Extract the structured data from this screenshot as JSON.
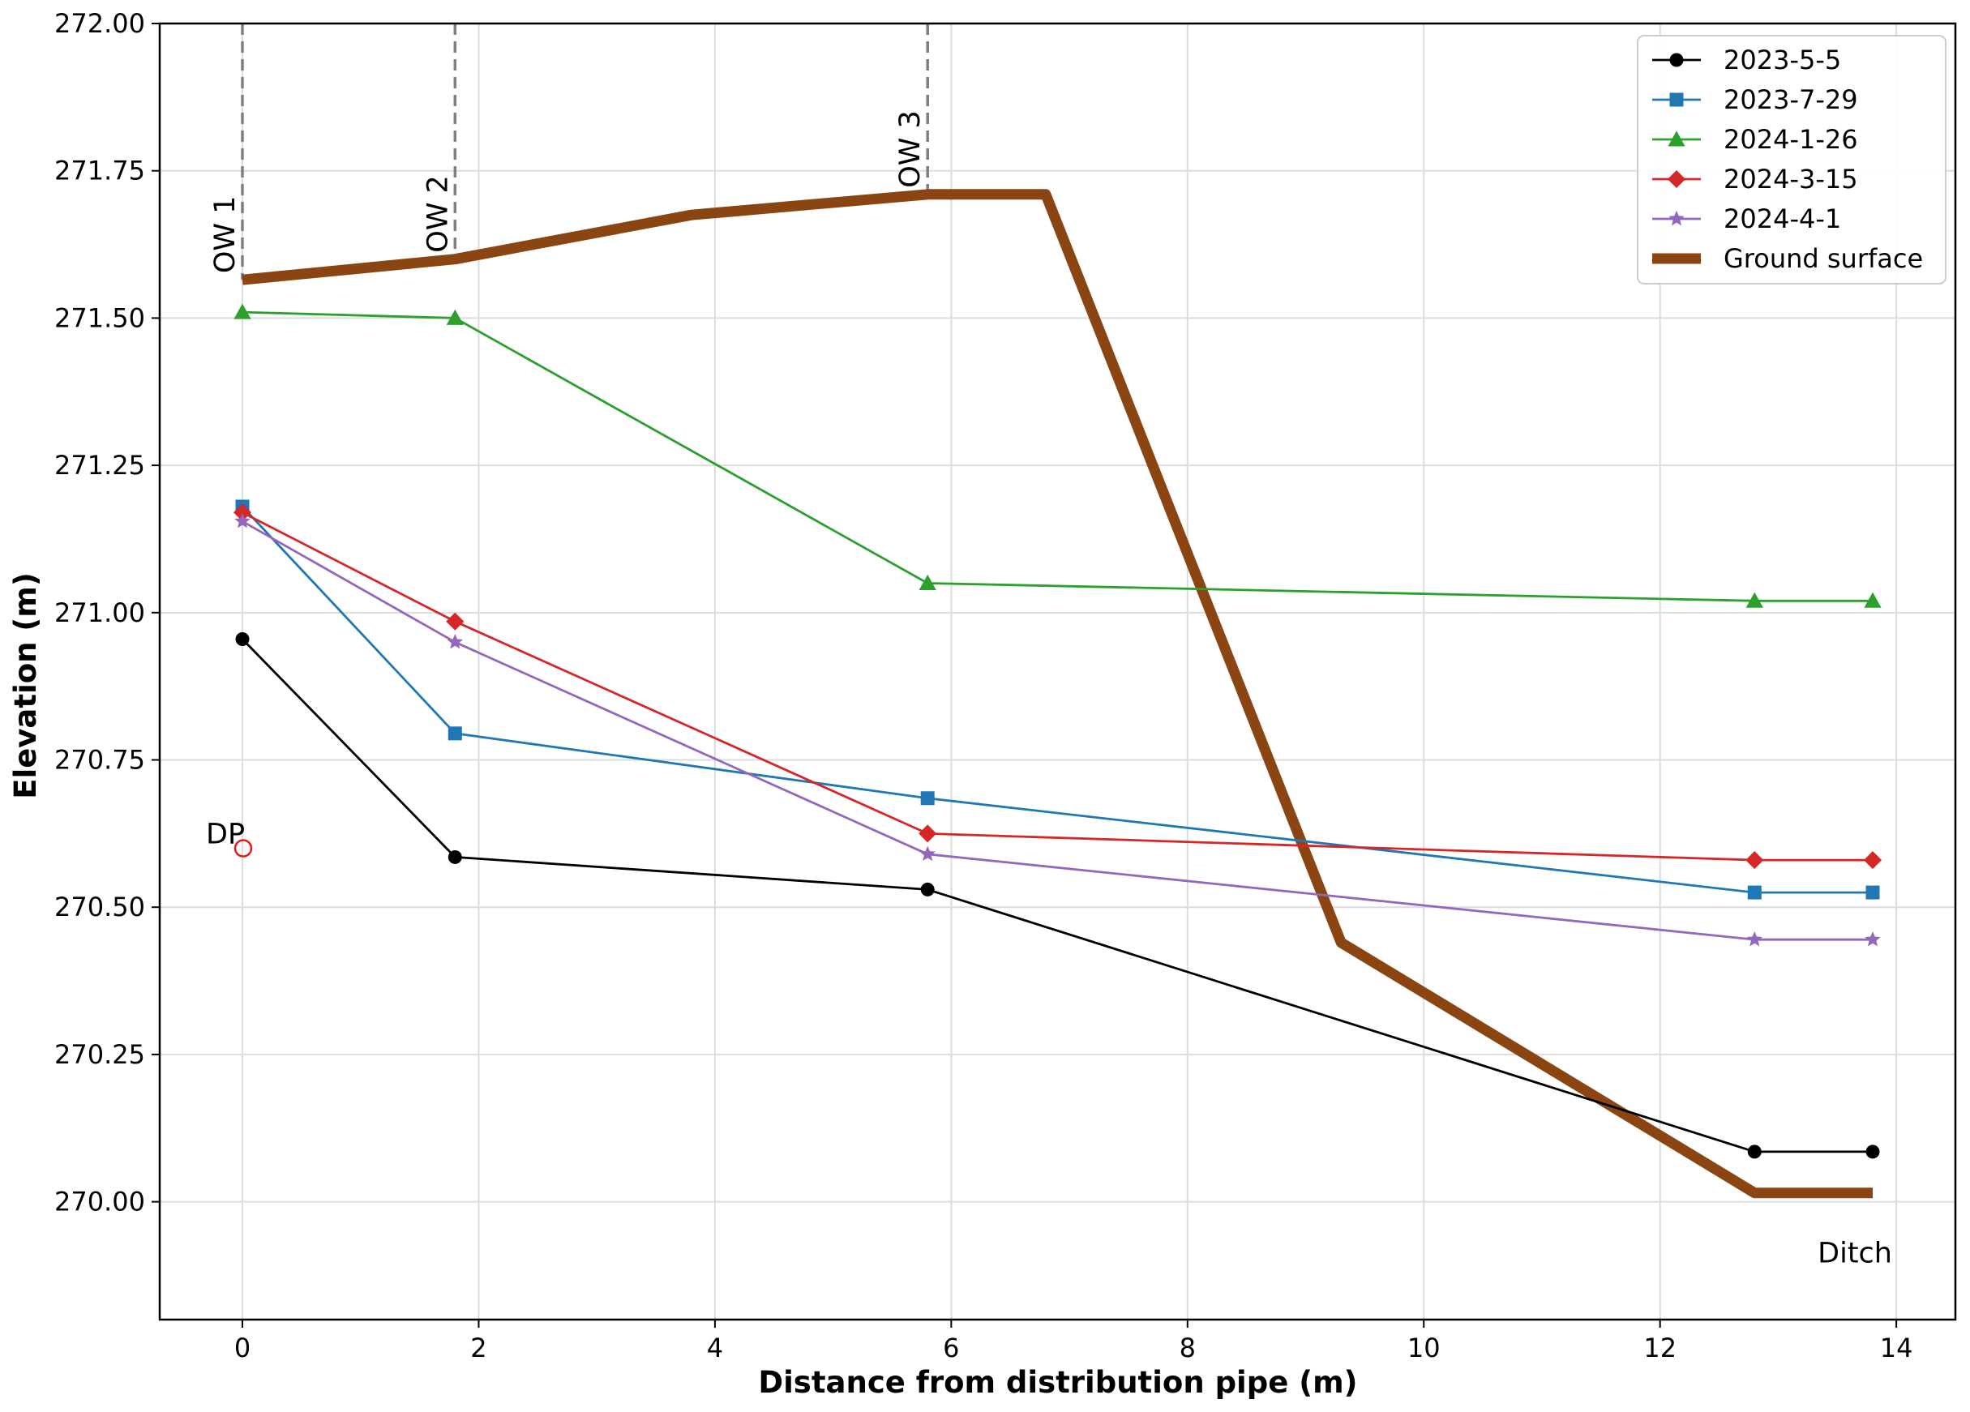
{
  "chart_data": {
    "type": "line",
    "title": "",
    "xlabel": "Distance from distribution pipe (m)",
    "ylabel": "Elevation (m)",
    "xlim": [
      -0.7,
      14.5
    ],
    "ylim": [
      269.8,
      272.0
    ],
    "xticks": [
      0,
      2,
      4,
      6,
      8,
      10,
      12,
      14
    ],
    "yticks": [
      270.0,
      270.25,
      270.5,
      270.75,
      271.0,
      271.25,
      271.5,
      271.75,
      272.0
    ],
    "xtick_labels": [
      "0",
      "2",
      "4",
      "6",
      "8",
      "10",
      "12",
      "14"
    ],
    "ytick_labels": [
      "270.00",
      "270.25",
      "270.50",
      "270.75",
      "271.00",
      "271.25",
      "271.50",
      "271.75",
      "272.00"
    ],
    "grid": true,
    "legend_position": "top-right",
    "series": [
      {
        "name": "2023-5-5",
        "color": "#000000",
        "marker": "circle",
        "x": [
          0,
          1.8,
          5.8,
          12.8,
          13.8
        ],
        "y": [
          270.955,
          270.585,
          270.53,
          270.085,
          270.085
        ]
      },
      {
        "name": "2023-7-29",
        "color": "#1f77b4",
        "marker": "square",
        "x": [
          0,
          1.8,
          5.8,
          12.8,
          13.8
        ],
        "y": [
          271.18,
          270.795,
          270.685,
          270.525,
          270.525
        ]
      },
      {
        "name": "2024-1-26",
        "color": "#2ca02c",
        "marker": "triangle",
        "x": [
          0,
          1.8,
          5.8,
          12.8,
          13.8
        ],
        "y": [
          271.51,
          271.5,
          271.05,
          271.02,
          271.02
        ]
      },
      {
        "name": "2024-3-15",
        "color": "#d62728",
        "marker": "diamond",
        "x": [
          0,
          1.8,
          5.8,
          12.8,
          13.8
        ],
        "y": [
          271.17,
          270.985,
          270.625,
          270.58,
          270.58
        ]
      },
      {
        "name": "2024-4-1",
        "color": "#9467bd",
        "marker": "star",
        "x": [
          0,
          1.8,
          5.8,
          12.8,
          13.8
        ],
        "y": [
          271.155,
          270.95,
          270.59,
          270.445,
          270.445
        ]
      },
      {
        "name": "Ground surface",
        "color": "#8b4513",
        "marker": "none",
        "thick": true,
        "x": [
          0,
          1.8,
          3.8,
          5.8,
          6.8,
          9.3,
          12.8,
          13.8
        ],
        "y": [
          271.565,
          271.6,
          271.675,
          271.71,
          271.71,
          270.44,
          270.015,
          270.015
        ]
      }
    ],
    "wells": [
      {
        "label": "OW 1",
        "x": 0,
        "y_top": 272.0,
        "y_bottom": 271.565
      },
      {
        "label": "OW 2",
        "x": 1.8,
        "y_top": 272.0,
        "y_bottom": 271.6
      },
      {
        "label": "OW 3",
        "x": 5.8,
        "y_top": 272.0,
        "y_bottom": 271.71
      }
    ],
    "annotations": [
      {
        "label": "DP",
        "x": 0,
        "y": 270.6,
        "marker": "open-circle",
        "color": "#e31a1c"
      },
      {
        "label": "Ditch",
        "x": 13.8,
        "y": 270.015
      }
    ]
  }
}
